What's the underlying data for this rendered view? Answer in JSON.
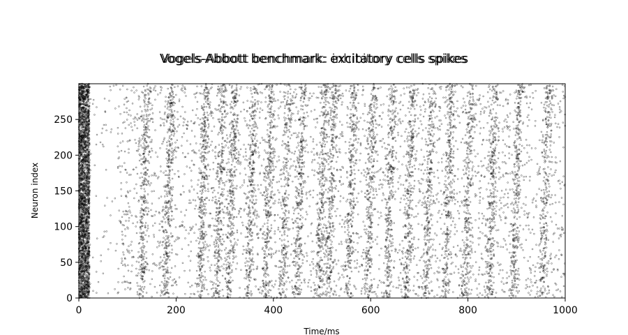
{
  "chart_data": {
    "type": "scatter",
    "title": "Vogels-Abbott benchmark: excitatory cells spikes",
    "title_overlay": "Vogels-Abbott benchmark: inhibitory cells spikes",
    "xlabel": "Time/ms",
    "ylabel": "Neuron index",
    "xlim": [
      0,
      1000
    ],
    "ylim": [
      0,
      300
    ],
    "xticks": [
      0,
      200,
      400,
      600,
      800,
      1000
    ],
    "xtick_labels": [
      "0",
      "200",
      "400",
      "600",
      "800",
      "1000"
    ],
    "yticks": [
      0,
      50,
      100,
      150,
      200,
      250
    ],
    "ytick_labels": [
      "0",
      "50",
      "100",
      "150",
      "200",
      "250"
    ],
    "grid": false,
    "marker_color": "#000000",
    "marker": "open-circle",
    "neuron_count": 300,
    "initial_burst": {
      "t_start": 0,
      "t_end": 22,
      "rate_density": "very high"
    },
    "quiet_window": {
      "t_start": 22,
      "t_end": 80
    },
    "population_bursts_ms": [
      135,
      185,
      255,
      290,
      315,
      355,
      390,
      425,
      455,
      500,
      520,
      560,
      600,
      640,
      680,
      720,
      760,
      800,
      850,
      900,
      960
    ]
  }
}
